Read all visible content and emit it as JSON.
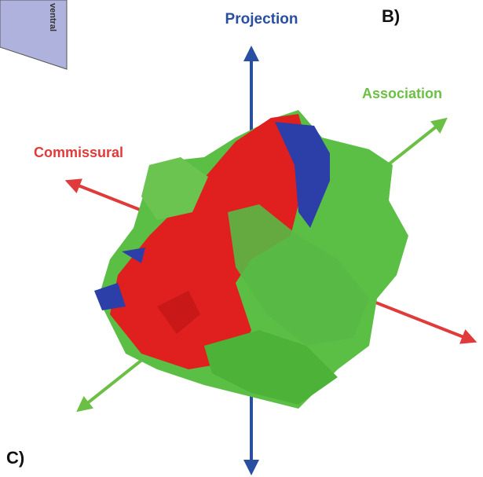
{
  "panels": {
    "b": "B)",
    "c": "C)"
  },
  "labels": {
    "projection": "Projection",
    "association": "Association",
    "commissural": "Commissural",
    "ventral": "ventral"
  }
}
